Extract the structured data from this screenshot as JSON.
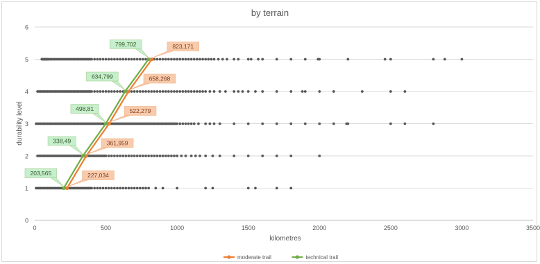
{
  "chart_data": {
    "type": "scatter",
    "title": "by terrain",
    "xlabel": "kilometres",
    "ylabel": "durability level",
    "xlim": [
      0,
      3500
    ],
    "ylim": [
      0,
      6
    ],
    "x_ticks": [
      "0",
      "500",
      "1000",
      "1500",
      "2000",
      "2500",
      "3000",
      "3500"
    ],
    "y_ticks": [
      "0",
      "1",
      "2",
      "3",
      "4",
      "5",
      "6"
    ],
    "grid": "horizontal",
    "legend_position": "bottom",
    "colors": {
      "moderate": "#ED7D31",
      "technical": "#70AD47",
      "scatter": "#595959"
    },
    "scatter_points": [
      {
        "y": 5,
        "x": [
          50,
          55,
          60,
          65,
          70,
          75,
          80,
          85,
          90,
          95,
          100,
          110,
          120,
          130,
          140,
          150,
          160,
          170,
          180,
          190,
          200,
          210,
          220,
          230,
          240,
          250,
          260,
          270,
          280,
          290,
          300,
          310,
          320,
          330,
          340,
          350,
          360,
          370,
          380,
          390,
          400,
          420,
          440,
          460,
          480,
          500,
          520,
          540,
          560,
          580,
          600,
          620,
          640,
          660,
          680,
          700,
          720,
          740,
          760,
          780,
          800,
          820,
          840,
          860,
          880,
          900,
          920,
          940,
          960,
          980,
          1000,
          1020,
          1040,
          1060,
          1080,
          1100,
          1120,
          1140,
          1160,
          1180,
          1200,
          1220,
          1240,
          1260,
          1290,
          1320,
          1350,
          1400,
          1430,
          1500,
          1520,
          1570,
          1600,
          1700,
          1800,
          1900,
          1990,
          2000,
          2200,
          2460,
          2500,
          2800,
          2880,
          3000
        ]
      },
      {
        "y": 4,
        "x": [
          20,
          30,
          40,
          50,
          60,
          70,
          80,
          90,
          100,
          110,
          120,
          130,
          140,
          150,
          160,
          170,
          180,
          190,
          200,
          210,
          220,
          230,
          240,
          250,
          260,
          270,
          280,
          290,
          300,
          310,
          320,
          330,
          340,
          350,
          360,
          370,
          380,
          390,
          400,
          420,
          440,
          460,
          480,
          500,
          520,
          540,
          560,
          580,
          600,
          620,
          640,
          660,
          680,
          700,
          720,
          740,
          760,
          780,
          800,
          820,
          840,
          860,
          880,
          900,
          920,
          940,
          960,
          980,
          1000,
          1020,
          1040,
          1060,
          1080,
          1100,
          1120,
          1140,
          1160,
          1180,
          1200,
          1230,
          1260,
          1300,
          1340,
          1400,
          1430,
          1460,
          1500,
          1550,
          1600,
          1700,
          1800,
          1880,
          1900,
          2000,
          2100,
          2300,
          2500,
          2600
        ]
      },
      {
        "y": 3,
        "x": [
          10,
          20,
          30,
          40,
          50,
          60,
          70,
          80,
          90,
          100,
          110,
          120,
          130,
          140,
          150,
          160,
          170,
          180,
          190,
          200,
          210,
          220,
          230,
          240,
          250,
          260,
          270,
          280,
          290,
          300,
          310,
          320,
          330,
          340,
          350,
          360,
          370,
          380,
          390,
          400,
          410,
          420,
          430,
          440,
          450,
          460,
          470,
          480,
          490,
          500,
          510,
          520,
          530,
          540,
          550,
          560,
          570,
          580,
          590,
          600,
          610,
          620,
          630,
          640,
          650,
          660,
          670,
          680,
          690,
          700,
          710,
          720,
          730,
          740,
          750,
          760,
          770,
          780,
          790,
          800,
          810,
          820,
          830,
          840,
          850,
          860,
          870,
          880,
          890,
          900,
          910,
          920,
          930,
          940,
          950,
          960,
          970,
          980,
          990,
          1000,
          1020,
          1040,
          1060,
          1080,
          1100,
          1120,
          1150,
          1200,
          1230,
          1260,
          1300,
          1400,
          1500,
          1600,
          1700,
          1800,
          1900,
          2000,
          2100,
          2190,
          2200,
          2500,
          2600,
          2800
        ]
      },
      {
        "y": 2,
        "x": [
          20,
          30,
          40,
          50,
          60,
          70,
          80,
          90,
          100,
          110,
          120,
          130,
          140,
          150,
          160,
          170,
          180,
          190,
          200,
          210,
          220,
          230,
          240,
          250,
          260,
          270,
          280,
          290,
          300,
          310,
          320,
          330,
          340,
          350,
          360,
          370,
          380,
          390,
          400,
          410,
          420,
          430,
          440,
          450,
          460,
          470,
          480,
          490,
          500,
          520,
          540,
          560,
          580,
          600,
          620,
          640,
          660,
          680,
          700,
          720,
          740,
          760,
          780,
          800,
          820,
          840,
          860,
          880,
          900,
          920,
          940,
          960,
          980,
          1000,
          1030,
          1060,
          1100,
          1130,
          1160,
          1200,
          1250,
          1300,
          1400,
          1500,
          1600,
          1700,
          1800,
          2000
        ]
      },
      {
        "y": 1,
        "x": [
          10,
          20,
          30,
          40,
          50,
          60,
          70,
          80,
          90,
          100,
          110,
          120,
          130,
          140,
          150,
          160,
          170,
          180,
          190,
          200,
          210,
          220,
          230,
          240,
          250,
          260,
          270,
          280,
          290,
          300,
          310,
          320,
          330,
          340,
          350,
          360,
          370,
          380,
          390,
          400,
          420,
          440,
          460,
          480,
          500,
          520,
          540,
          560,
          580,
          600,
          620,
          640,
          660,
          680,
          700,
          720,
          740,
          760,
          780,
          800,
          850,
          900,
          1000,
          1200,
          1250,
          1500,
          1550,
          1700,
          1800
        ]
      }
    ],
    "series": [
      {
        "name": "moderate trail",
        "color": "#ED7D31",
        "x": [
          227.034,
          361.959,
          522.279,
          658.268,
          823.171
        ],
        "y": [
          1,
          2,
          3,
          4,
          5
        ],
        "labels": [
          "227,034",
          "361,959",
          "522,279",
          "658,268",
          "823,171"
        ]
      },
      {
        "name": "technical trail",
        "color": "#70AD47",
        "x": [
          203.565,
          338.49,
          498.81,
          634.799,
          799.702
        ],
        "y": [
          1,
          2,
          3,
          4,
          5
        ],
        "labels": [
          "203,565",
          "338,49",
          "498,81",
          "634,799",
          "799,702"
        ]
      }
    ]
  }
}
